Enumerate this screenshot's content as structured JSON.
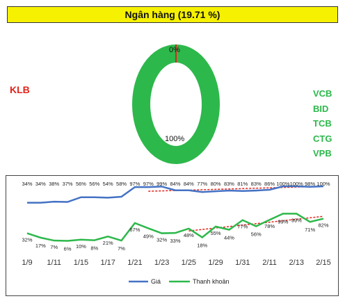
{
  "header": {
    "title": "Ngân hàng (19.71 %)"
  },
  "donut": {
    "series": [
      {
        "label": "0%",
        "value": 0,
        "color": "#e0241b"
      },
      {
        "label": "100%",
        "value": 100,
        "color": "#2db84b"
      }
    ]
  },
  "legend_red": "KLB",
  "legend_green": [
    "VCB",
    "BID",
    "TCB",
    "CTG",
    "VPB"
  ],
  "chart_data": {
    "type": "line",
    "x_ticks": [
      "1/9",
      "1/11",
      "1/15",
      "1/17",
      "1/21",
      "1/23",
      "1/25",
      "1/29",
      "1/31",
      "2/11",
      "2/13",
      "2/15"
    ],
    "series": [
      {
        "name": "Giá",
        "color": "#4472c4",
        "labels": [
          "34%",
          "34%",
          "38%",
          "37%",
          "56%",
          "56%",
          "54%",
          "58%",
          "97%",
          "97%",
          "99%",
          "84%",
          "84%",
          "77%",
          "80%",
          "83%",
          "81%",
          "83%",
          "86%",
          "100%",
          "100%",
          "98%",
          "100%"
        ],
        "values": [
          34,
          34,
          38,
          37,
          56,
          56,
          54,
          58,
          97,
          97,
          99,
          84,
          84,
          77,
          80,
          83,
          81,
          83,
          86,
          100,
          100,
          98,
          100
        ]
      },
      {
        "name": "Thanh khoản",
        "color": "#2db84b",
        "labels": [
          "32%",
          "17%",
          "7%",
          "6%",
          "10%",
          "8%",
          "21%",
          "7%",
          "67%",
          "49%",
          "32%",
          "33%",
          "48%",
          "18%",
          "55%",
          "44%",
          "77%",
          "56%",
          "78%",
          "99%",
          "99%",
          "71%",
          "82%"
        ],
        "values": [
          32,
          17,
          7,
          6,
          10,
          8,
          21,
          7,
          67,
          49,
          32,
          33,
          48,
          18,
          55,
          44,
          77,
          56,
          78,
          99,
          99,
          71,
          82
        ]
      }
    ],
    "trendlines": [
      {
        "of": "Giá",
        "color": "#e0241b",
        "style": "dashed"
      },
      {
        "of": "Thanh khoản",
        "color": "#e0241b",
        "style": "dashed"
      }
    ]
  }
}
